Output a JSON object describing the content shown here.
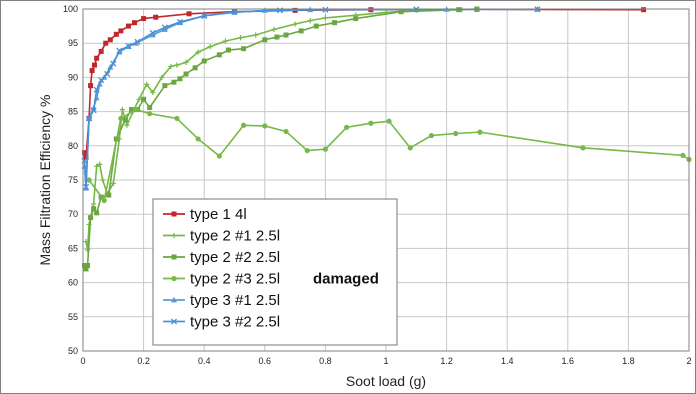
{
  "chart_data": {
    "type": "line",
    "title": "",
    "xlabel": "Soot load (g)",
    "ylabel": "Mass Filtration Efficiency %",
    "xlim": [
      0,
      2
    ],
    "ylim": [
      50,
      100
    ],
    "x_ticks": [
      "0",
      "0.2",
      "0.4",
      "0.6",
      "0.8",
      "1",
      "1.2",
      "1.4",
      "1.6",
      "1.8",
      "2"
    ],
    "y_ticks": [
      "50",
      "55",
      "60",
      "65",
      "70",
      "75",
      "80",
      "85",
      "90",
      "95",
      "100"
    ],
    "grid": true,
    "legend_position": "bottom-left",
    "series": [
      {
        "name": "type 1 4l",
        "color": "#c0282d",
        "marker": "square",
        "points": [
          [
            0.005,
            79.0
          ],
          [
            0.01,
            78.3
          ],
          [
            0.02,
            84.0
          ],
          [
            0.025,
            88.8
          ],
          [
            0.03,
            91.0
          ],
          [
            0.038,
            91.8
          ],
          [
            0.045,
            92.8
          ],
          [
            0.06,
            93.8
          ],
          [
            0.075,
            95.0
          ],
          [
            0.09,
            95.5
          ],
          [
            0.11,
            96.3
          ],
          [
            0.125,
            96.8
          ],
          [
            0.15,
            97.5
          ],
          [
            0.17,
            98.0
          ],
          [
            0.2,
            98.6
          ],
          [
            0.24,
            98.8
          ],
          [
            0.35,
            99.3
          ],
          [
            0.5,
            99.6
          ],
          [
            0.7,
            99.8
          ],
          [
            0.95,
            99.9
          ],
          [
            1.3,
            99.95
          ],
          [
            1.85,
            99.9
          ]
        ]
      },
      {
        "name": "type 2 #1  2.5l",
        "color": "#76b947",
        "marker": "plus",
        "points": [
          [
            0.01,
            66.0
          ],
          [
            0.015,
            64.8
          ],
          [
            0.02,
            68.5
          ],
          [
            0.035,
            71.5
          ],
          [
            0.045,
            77.0
          ],
          [
            0.055,
            77.3
          ],
          [
            0.065,
            75.0
          ],
          [
            0.08,
            73.0
          ],
          [
            0.1,
            74.5
          ],
          [
            0.12,
            81.0
          ],
          [
            0.13,
            85.3
          ],
          [
            0.145,
            83.0
          ],
          [
            0.165,
            85.0
          ],
          [
            0.185,
            86.8
          ],
          [
            0.21,
            89.0
          ],
          [
            0.23,
            87.8
          ],
          [
            0.26,
            90.0
          ],
          [
            0.29,
            91.6
          ],
          [
            0.31,
            91.8
          ],
          [
            0.34,
            92.2
          ],
          [
            0.38,
            93.7
          ],
          [
            0.42,
            94.5
          ],
          [
            0.47,
            95.3
          ],
          [
            0.52,
            95.8
          ],
          [
            0.57,
            96.2
          ],
          [
            0.63,
            97.0
          ],
          [
            0.7,
            97.8
          ],
          [
            0.75,
            98.3
          ],
          [
            0.8,
            98.7
          ],
          [
            0.9,
            99.1
          ],
          [
            1.0,
            99.5
          ],
          [
            1.1,
            99.8
          ],
          [
            1.25,
            99.9
          ]
        ]
      },
      {
        "name": "type 2 #2  2.5l",
        "color": "#6aa83f",
        "marker": "square",
        "points": [
          [
            0.005,
            62.5
          ],
          [
            0.01,
            62.0
          ],
          [
            0.015,
            62.5
          ],
          [
            0.025,
            69.5
          ],
          [
            0.035,
            70.8
          ],
          [
            0.045,
            70.2
          ],
          [
            0.06,
            72.5
          ],
          [
            0.085,
            72.8
          ],
          [
            0.11,
            81.0
          ],
          [
            0.14,
            83.8
          ],
          [
            0.16,
            85.3
          ],
          [
            0.18,
            85.3
          ],
          [
            0.2,
            86.8
          ],
          [
            0.22,
            85.6
          ],
          [
            0.27,
            88.8
          ],
          [
            0.3,
            89.3
          ],
          [
            0.32,
            89.8
          ],
          [
            0.34,
            90.5
          ],
          [
            0.37,
            91.4
          ],
          [
            0.4,
            92.4
          ],
          [
            0.45,
            93.3
          ],
          [
            0.48,
            94.0
          ],
          [
            0.53,
            94.2
          ],
          [
            0.6,
            95.5
          ],
          [
            0.64,
            95.9
          ],
          [
            0.67,
            96.2
          ],
          [
            0.72,
            96.8
          ],
          [
            0.77,
            97.5
          ],
          [
            0.83,
            98.0
          ],
          [
            0.9,
            98.6
          ],
          [
            1.05,
            99.6
          ],
          [
            1.24,
            99.9
          ],
          [
            1.3,
            100.0
          ]
        ]
      },
      {
        "name": "type 2 #3 2.5l",
        "annotation": "damaged",
        "color": "#76b947",
        "marker": "circle",
        "points": [
          [
            0.02,
            75.0
          ],
          [
            0.07,
            72.0
          ],
          [
            0.125,
            84.0
          ],
          [
            0.175,
            85.3
          ],
          [
            0.22,
            84.7
          ],
          [
            0.31,
            84.0
          ],
          [
            0.38,
            81.0
          ],
          [
            0.45,
            78.5
          ],
          [
            0.53,
            83.0
          ],
          [
            0.6,
            82.9
          ],
          [
            0.67,
            82.1
          ],
          [
            0.74,
            79.3
          ],
          [
            0.8,
            79.5
          ],
          [
            0.87,
            82.7
          ],
          [
            0.95,
            83.3
          ],
          [
            1.01,
            83.6
          ],
          [
            1.08,
            79.7
          ],
          [
            1.15,
            81.5
          ],
          [
            1.23,
            81.8
          ],
          [
            1.31,
            82.0
          ],
          [
            1.65,
            79.7
          ],
          [
            1.98,
            78.6
          ],
          [
            2.0,
            78.0
          ]
        ]
      },
      {
        "name": "type 3 #1  2.5l",
        "color": "#5b9bd5",
        "marker": "triangle",
        "points": [
          [
            0.005,
            77.0
          ],
          [
            0.01,
            73.8
          ],
          [
            0.02,
            84.0
          ],
          [
            0.035,
            85.5
          ],
          [
            0.045,
            87.0
          ],
          [
            0.055,
            89.0
          ],
          [
            0.07,
            90.0
          ],
          [
            0.09,
            91.5
          ],
          [
            0.12,
            93.7
          ],
          [
            0.15,
            94.5
          ],
          [
            0.175,
            95.0
          ],
          [
            0.23,
            96.2
          ],
          [
            0.27,
            97.0
          ],
          [
            0.32,
            98.0
          ],
          [
            0.4,
            99.0
          ],
          [
            0.5,
            99.5
          ],
          [
            0.6,
            99.8
          ],
          [
            0.75,
            99.9
          ],
          [
            1.2,
            99.95
          ],
          [
            1.5,
            99.95
          ]
        ]
      },
      {
        "name": "type 3 #2  2.5l",
        "color": "#4a90d9",
        "marker": "x",
        "points": [
          [
            0.005,
            77.8
          ],
          [
            0.01,
            74.0
          ],
          [
            0.02,
            84.0
          ],
          [
            0.035,
            85.2
          ],
          [
            0.045,
            88.2
          ],
          [
            0.06,
            89.6
          ],
          [
            0.08,
            90.5
          ],
          [
            0.1,
            92.0
          ],
          [
            0.12,
            93.9
          ],
          [
            0.15,
            94.6
          ],
          [
            0.18,
            95.2
          ],
          [
            0.23,
            96.5
          ],
          [
            0.27,
            97.3
          ],
          [
            0.32,
            98.1
          ],
          [
            0.4,
            99.0
          ],
          [
            0.5,
            99.6
          ],
          [
            0.65,
            99.8
          ],
          [
            0.8,
            99.9
          ],
          [
            1.1,
            99.95
          ],
          [
            1.5,
            99.95
          ]
        ]
      }
    ]
  }
}
